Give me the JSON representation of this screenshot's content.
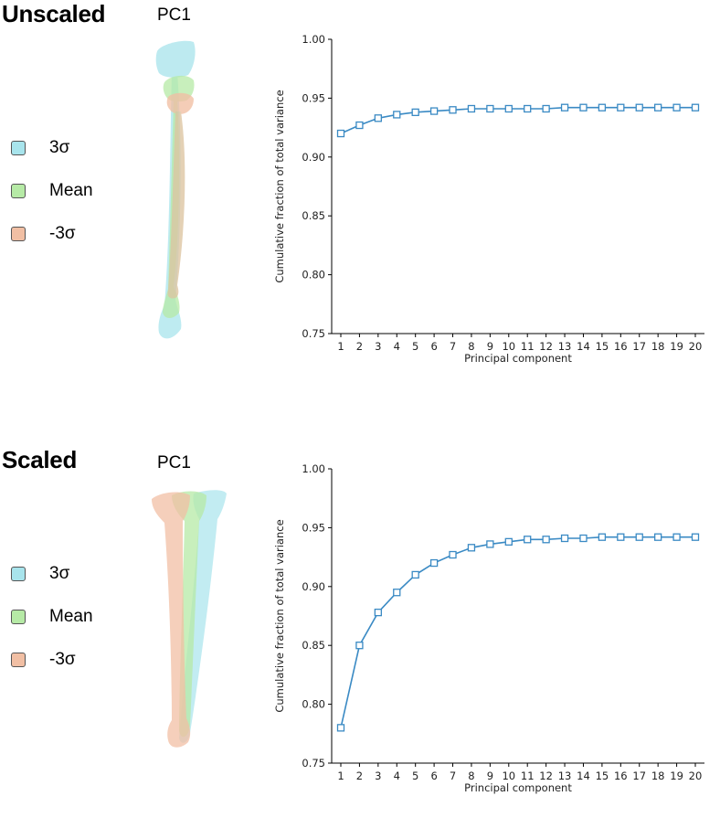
{
  "panels": [
    {
      "title": "Unscaled",
      "pc_label": "PC1",
      "legend": [
        {
          "label": "3σ",
          "color": "#a8e4ec"
        },
        {
          "label": "Mean",
          "color": "#b6eaa6"
        },
        {
          "label": "-3σ",
          "color": "#f1bfa4"
        }
      ]
    },
    {
      "title": "Scaled",
      "pc_label": "PC1",
      "legend": [
        {
          "label": "3σ",
          "color": "#a8e4ec"
        },
        {
          "label": "Mean",
          "color": "#b6eaa6"
        },
        {
          "label": "-3σ",
          "color": "#f1bfa4"
        }
      ]
    }
  ],
  "chart_data": [
    {
      "type": "line",
      "title": "",
      "xlabel": "Principal component",
      "ylabel": "Cumulative fraction of total variance",
      "x": [
        1,
        2,
        3,
        4,
        5,
        6,
        7,
        8,
        9,
        10,
        11,
        12,
        13,
        14,
        15,
        16,
        17,
        18,
        19,
        20
      ],
      "values": [
        0.92,
        0.927,
        0.933,
        0.936,
        0.938,
        0.939,
        0.94,
        0.941,
        0.941,
        0.941,
        0.941,
        0.941,
        0.942,
        0.942,
        0.942,
        0.942,
        0.942,
        0.942,
        0.942,
        0.942
      ],
      "ylim": [
        0.75,
        1.0
      ],
      "yticks": [
        "0.75",
        "0.80",
        "0.85",
        "0.90",
        "0.95",
        "1.00"
      ],
      "xticks": [
        "1",
        "2",
        "3",
        "4",
        "5",
        "6",
        "7",
        "8",
        "9",
        "10",
        "11",
        "12",
        "13",
        "14",
        "15",
        "16",
        "17",
        "18",
        "19",
        "20"
      ],
      "color": "#3a8ac4",
      "marker": "square"
    },
    {
      "type": "line",
      "title": "",
      "xlabel": "Principal component",
      "ylabel": "Cumulative fraction of total variance",
      "x": [
        1,
        2,
        3,
        4,
        5,
        6,
        7,
        8,
        9,
        10,
        11,
        12,
        13,
        14,
        15,
        16,
        17,
        18,
        19,
        20
      ],
      "values": [
        0.78,
        0.85,
        0.878,
        0.895,
        0.91,
        0.92,
        0.927,
        0.933,
        0.936,
        0.938,
        0.94,
        0.94,
        0.941,
        0.941,
        0.942,
        0.942,
        0.942,
        0.942,
        0.942,
        0.942
      ],
      "ylim": [
        0.75,
        1.0
      ],
      "yticks": [
        "0.75",
        "0.80",
        "0.85",
        "0.90",
        "0.95",
        "1.00"
      ],
      "xticks": [
        "1",
        "2",
        "3",
        "4",
        "5",
        "6",
        "7",
        "8",
        "9",
        "10",
        "11",
        "12",
        "13",
        "14",
        "15",
        "16",
        "17",
        "18",
        "19",
        "20"
      ],
      "color": "#3a8ac4",
      "marker": "square"
    }
  ]
}
